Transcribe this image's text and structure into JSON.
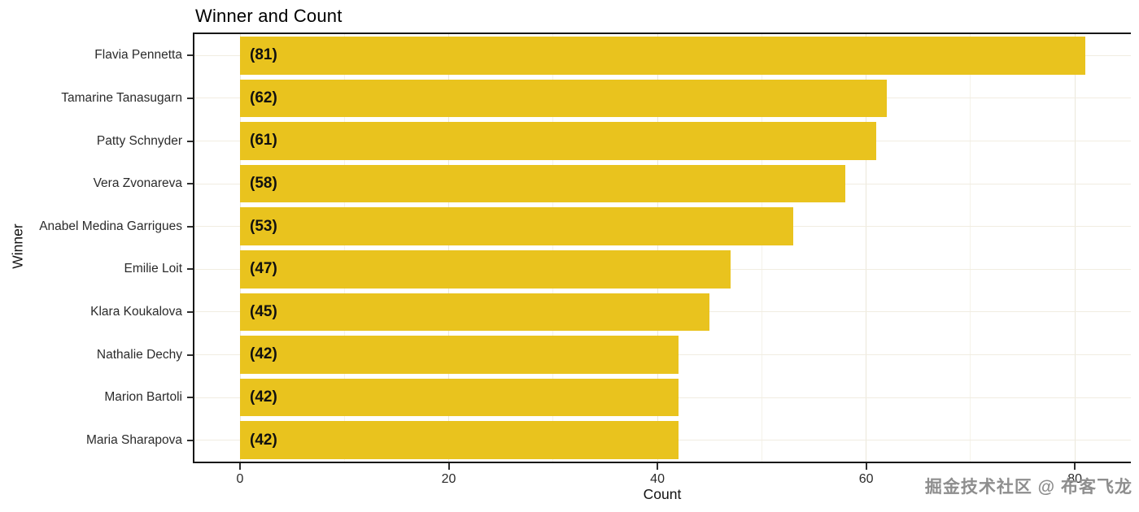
{
  "chart_data": {
    "type": "bar",
    "orientation": "horizontal",
    "title": "Winner and Count",
    "xlabel": "Count",
    "ylabel": "Winner",
    "categories": [
      "Flavia Pennetta",
      "Tamarine Tanasugarn",
      "Patty Schnyder",
      "Vera Zvonareva",
      "Anabel Medina Garrigues",
      "Emilie Loit",
      "Klara Koukalova",
      "Nathalie Dechy",
      "Marion Bartoli",
      "Maria Sharapova"
    ],
    "values": [
      81,
      62,
      61,
      58,
      53,
      47,
      45,
      42,
      42,
      42
    ],
    "bar_labels": [
      "(81)",
      "(62)",
      "(61)",
      "(58)",
      "(53)",
      "(47)",
      "(45)",
      "(42)",
      "(42)",
      "(42)"
    ],
    "xticks": [
      0,
      20,
      40,
      60,
      80
    ],
    "xlim": [
      0,
      85
    ],
    "bar_color": "#e9c31e",
    "grid": "on",
    "legend": "none"
  },
  "watermark": {
    "text": "掘金技术社区 @ 布客飞龙"
  }
}
